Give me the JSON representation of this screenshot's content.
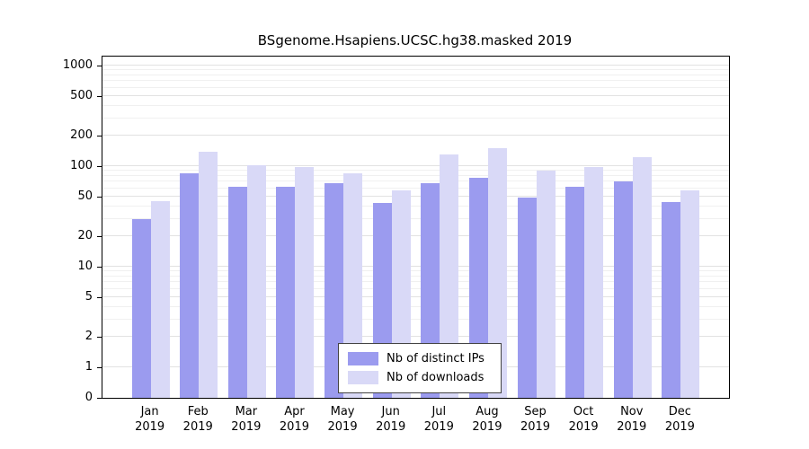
{
  "chart_data": {
    "type": "bar",
    "title": "BSgenome.Hsapiens.UCSC.hg38.masked 2019",
    "categories": [
      "Jan 2019",
      "Feb 2019",
      "Mar 2019",
      "Apr 2019",
      "May 2019",
      "Jun 2019",
      "Jul 2019",
      "Aug 2019",
      "Sep 2019",
      "Oct 2019",
      "Nov 2019",
      "Dec 2019"
    ],
    "series": [
      {
        "name": "Nb of distinct IPs",
        "color": "#9b9bef",
        "values": [
          30,
          85,
          62,
          62,
          68,
          43,
          67,
          77,
          49,
          62,
          70,
          44
        ]
      },
      {
        "name": "Nb of downloads",
        "color": "#d9d9f7",
        "values": [
          45,
          140,
          103,
          97,
          85,
          57,
          132,
          152,
          91,
          98,
          122,
          58
        ]
      }
    ],
    "yscale": "log",
    "yticks": [
      0,
      1,
      2,
      5,
      10,
      20,
      50,
      100,
      200,
      500,
      1000
    ],
    "ylim": [
      0,
      1000
    ],
    "grid": true,
    "legend_position": "bottom-center-inside",
    "xlabel": "",
    "ylabel": ""
  },
  "colors": {
    "minor_gridline": "#f0f0f0",
    "major_gridline": "#e2e2e2",
    "axis": "#000000",
    "background": "#ffffff"
  }
}
